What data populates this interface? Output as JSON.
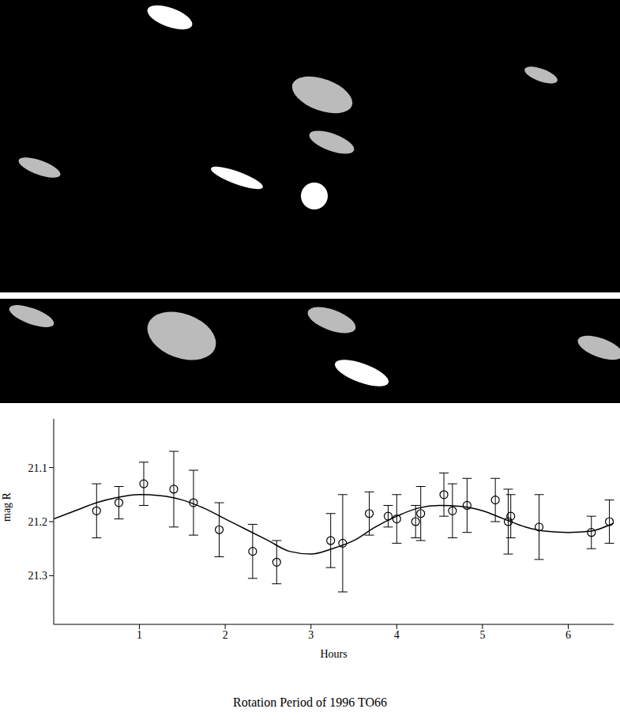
{
  "chart_data": {
    "type": "scatter",
    "title": "Rotation Period of 1996 TO66",
    "xlabel": "Hours",
    "ylabel": "mag R",
    "xlim": [
      0,
      6.53
    ],
    "xticks": [
      1,
      2,
      3,
      4,
      5,
      6
    ],
    "ylim": [
      21.39,
      21.01
    ],
    "yticks": [
      21.1,
      21.2,
      21.3
    ],
    "grid": false,
    "series": [
      {
        "type": "scatter",
        "marker": "circle",
        "color": "#000000",
        "x": [
          0.5,
          0.76,
          1.05,
          1.4,
          1.63,
          1.93,
          2.32,
          2.6,
          3.23,
          3.37,
          3.68,
          3.9,
          4.0,
          4.22,
          4.28,
          4.55,
          4.65,
          4.82,
          5.15,
          5.3,
          5.33,
          5.66,
          6.27,
          6.48
        ],
        "values": [
          21.18,
          21.165,
          21.13,
          21.14,
          21.165,
          21.215,
          21.255,
          21.275,
          21.235,
          21.24,
          21.185,
          21.19,
          21.195,
          21.2,
          21.185,
          21.15,
          21.18,
          21.17,
          21.16,
          21.2,
          21.19,
          21.21,
          21.22,
          21.2
        ],
        "error": [
          0.05,
          0.03,
          0.04,
          0.07,
          0.06,
          0.05,
          0.05,
          0.04,
          0.05,
          0.09,
          0.04,
          0.02,
          0.045,
          0.03,
          0.05,
          0.04,
          0.05,
          0.05,
          0.04,
          0.06,
          0.04,
          0.06,
          0.03,
          0.04
        ]
      },
      {
        "type": "line",
        "line_style": "solid",
        "color": "#000000",
        "x": [
          0,
          0.25,
          0.5,
          0.75,
          1.0,
          1.25,
          1.5,
          1.75,
          2.0,
          2.25,
          2.5,
          2.75,
          3.0,
          3.25,
          3.5,
          3.75,
          4.0,
          4.25,
          4.5,
          4.75,
          5.0,
          5.25,
          5.5,
          5.75,
          6.0,
          6.25,
          6.5,
          6.53
        ],
        "values": [
          21.195,
          21.18,
          21.165,
          21.155,
          21.15,
          21.152,
          21.16,
          21.175,
          21.195,
          21.215,
          21.235,
          21.255,
          21.26,
          21.25,
          21.235,
          21.21,
          21.19,
          21.175,
          21.17,
          21.172,
          21.18,
          21.195,
          21.21,
          21.218,
          21.22,
          21.218,
          21.205,
          21.203
        ]
      }
    ]
  }
}
